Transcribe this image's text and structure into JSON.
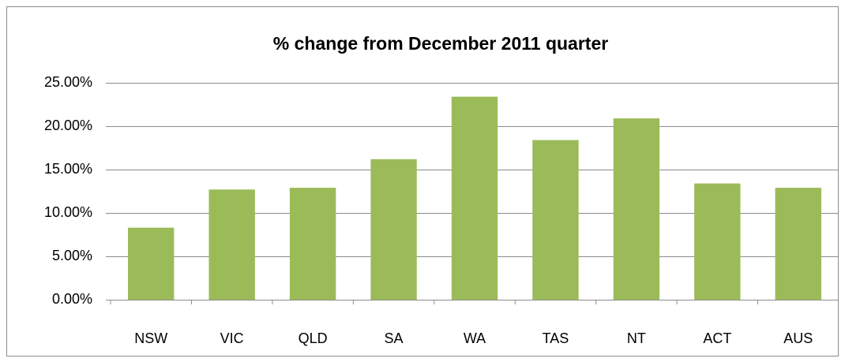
{
  "chart_data": {
    "type": "bar",
    "title": "% change from December 2011 quarter",
    "categories": [
      "NSW",
      "VIC",
      "QLD",
      "SA",
      "WA",
      "TAS",
      "NT",
      "ACT",
      "AUS"
    ],
    "values": [
      8.3,
      12.7,
      12.9,
      16.2,
      23.4,
      18.4,
      20.9,
      13.4,
      12.9
    ],
    "color": "#9bbb59",
    "ylim": [
      0,
      25
    ],
    "yticks": [
      {
        "value": 0,
        "label": "0.00%"
      },
      {
        "value": 5,
        "label": "5.00%"
      },
      {
        "value": 10,
        "label": "10.00%"
      },
      {
        "value": 15,
        "label": "15.00%"
      },
      {
        "value": 20,
        "label": "20.00%"
      },
      {
        "value": 25,
        "label": "25.00%"
      }
    ],
    "grid": true
  }
}
